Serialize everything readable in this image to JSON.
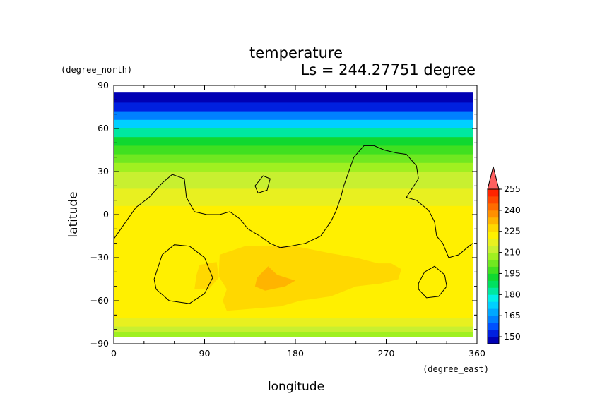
{
  "chart_data": {
    "type": "heatmap",
    "title": "temperature",
    "subtitle": "Ls = 244.27751 degree",
    "xlabel": "longitude",
    "ylabel": "latitude",
    "x_units": "(degree_east)",
    "y_units": "(degree_north)",
    "xlim": [
      0,
      360
    ],
    "ylim": [
      -90,
      90
    ],
    "xticks": [
      "0",
      "90",
      "180",
      "270",
      "360"
    ],
    "yticks": [
      "90",
      "60",
      "30",
      "0",
      "−30",
      "−60",
      "−90"
    ],
    "colorbar": {
      "levels": [
        145,
        150,
        155,
        160,
        165,
        170,
        175,
        180,
        185,
        190,
        195,
        200,
        205,
        210,
        215,
        220,
        225,
        230,
        235,
        240,
        245,
        250,
        255,
        260
      ],
      "tick_labels": [
        "150",
        "165",
        "180",
        "195",
        "210",
        "225",
        "240",
        "255"
      ],
      "colors": [
        "#0000b4",
        "#0020e0",
        "#0050ff",
        "#0080ff",
        "#00a8ff",
        "#00d0ff",
        "#00f0e8",
        "#00e8a0",
        "#00e060",
        "#10d830",
        "#40e020",
        "#70e820",
        "#a0f020",
        "#c8f030",
        "#e8f020",
        "#fff000",
        "#ffd800",
        "#ffb400",
        "#ff9000",
        "#ff6c00",
        "#ff4800",
        "#ff2400",
        "#ff6060"
      ],
      "extend": "max"
    },
    "lat_profile": [
      {
        "lat": 85,
        "value": 146
      },
      {
        "lat": 78,
        "value": 150
      },
      {
        "lat": 72,
        "value": 160
      },
      {
        "lat": 66,
        "value": 172
      },
      {
        "lat": 60,
        "value": 183
      },
      {
        "lat": 54,
        "value": 192
      },
      {
        "lat": 48,
        "value": 198
      },
      {
        "lat": 42,
        "value": 203
      },
      {
        "lat": 36,
        "value": 207
      },
      {
        "lat": 30,
        "value": 211
      },
      {
        "lat": 24,
        "value": 214
      },
      {
        "lat": 18,
        "value": 217
      },
      {
        "lat": 12,
        "value": 219
      },
      {
        "lat": 6,
        "value": 220
      },
      {
        "lat": 0,
        "value": 220
      },
      {
        "lat": -10,
        "value": 221
      },
      {
        "lat": -20,
        "value": 222
      },
      {
        "lat": -30,
        "value": 223
      },
      {
        "lat": -40,
        "value": 224
      },
      {
        "lat": -50,
        "value": 224
      },
      {
        "lat": -60,
        "value": 223
      },
      {
        "lat": -66,
        "value": 221
      },
      {
        "lat": -72,
        "value": 217
      },
      {
        "lat": -78,
        "value": 212
      },
      {
        "lat": -82,
        "value": 208
      },
      {
        "lat": -85,
        "value": 205
      }
    ],
    "regions": [
      {
        "level": 225,
        "polygon": [
          [
            105,
            -28
          ],
          [
            130,
            -22
          ],
          [
            180,
            -22
          ],
          [
            215,
            -27
          ],
          [
            240,
            -30
          ],
          [
            262,
            -34
          ],
          [
            275,
            -34
          ],
          [
            285,
            -38
          ],
          [
            282,
            -45
          ],
          [
            265,
            -48
          ],
          [
            240,
            -50
          ],
          [
            215,
            -57
          ],
          [
            185,
            -60
          ],
          [
            165,
            -64
          ],
          [
            130,
            -66
          ],
          [
            112,
            -67
          ],
          [
            108,
            -60
          ],
          [
            112,
            -52
          ],
          [
            104,
            -43
          ]
        ]
      },
      {
        "level": 225,
        "polygon": [
          [
            85,
            -35
          ],
          [
            102,
            -33
          ],
          [
            104,
            -44
          ],
          [
            94,
            -52
          ],
          [
            80,
            -52
          ],
          [
            82,
            -42
          ]
        ]
      },
      {
        "level": 230,
        "polygon": [
          [
            142,
            -44
          ],
          [
            153,
            -36
          ],
          [
            162,
            -42
          ],
          [
            180,
            -46
          ],
          [
            170,
            -50
          ],
          [
            150,
            -53
          ],
          [
            140,
            -50
          ]
        ]
      }
    ],
    "contours": [
      {
        "points": [
          [
            0,
            -17
          ],
          [
            12,
            -5
          ],
          [
            22,
            5
          ],
          [
            35,
            12
          ],
          [
            48,
            22
          ],
          [
            58,
            28
          ],
          [
            70,
            25
          ],
          [
            72,
            12
          ],
          [
            80,
            2
          ],
          [
            92,
            0
          ],
          [
            105,
            0
          ],
          [
            115,
            2
          ],
          [
            125,
            -3
          ],
          [
            133,
            -10
          ],
          [
            145,
            -15
          ],
          [
            155,
            -20
          ],
          [
            165,
            -23
          ],
          [
            175,
            -22
          ],
          [
            190,
            -20
          ],
          [
            205,
            -15
          ],
          [
            215,
            -5
          ],
          [
            220,
            2
          ],
          [
            225,
            12
          ],
          [
            228,
            20
          ],
          [
            232,
            28
          ],
          [
            238,
            40
          ],
          [
            248,
            48
          ],
          [
            258,
            48
          ],
          [
            268,
            45
          ],
          [
            280,
            43
          ],
          [
            290,
            42
          ],
          [
            300,
            34
          ],
          [
            302,
            25
          ],
          [
            290,
            12
          ],
          [
            300,
            10
          ],
          [
            312,
            3
          ],
          [
            318,
            -5
          ],
          [
            320,
            -15
          ],
          [
            326,
            -20
          ],
          [
            332,
            -30
          ],
          [
            342,
            -28
          ],
          [
            352,
            -22
          ],
          [
            360,
            -18
          ]
        ]
      },
      {
        "points": [
          [
            140,
            20
          ],
          [
            148,
            27
          ],
          [
            155,
            25
          ],
          [
            152,
            17
          ],
          [
            143,
            15
          ],
          [
            140,
            20
          ]
        ]
      },
      {
        "points": [
          [
            40,
            -45
          ],
          [
            48,
            -28
          ],
          [
            60,
            -21
          ],
          [
            75,
            -22
          ],
          [
            90,
            -30
          ],
          [
            98,
            -44
          ],
          [
            90,
            -55
          ],
          [
            75,
            -62
          ],
          [
            55,
            -60
          ],
          [
            42,
            -52
          ],
          [
            40,
            -45
          ]
        ]
      },
      {
        "points": [
          [
            302,
            -48
          ],
          [
            308,
            -40
          ],
          [
            318,
            -36
          ],
          [
            328,
            -42
          ],
          [
            330,
            -50
          ],
          [
            322,
            -57
          ],
          [
            310,
            -58
          ],
          [
            302,
            -52
          ],
          [
            302,
            -48
          ]
        ]
      }
    ]
  }
}
